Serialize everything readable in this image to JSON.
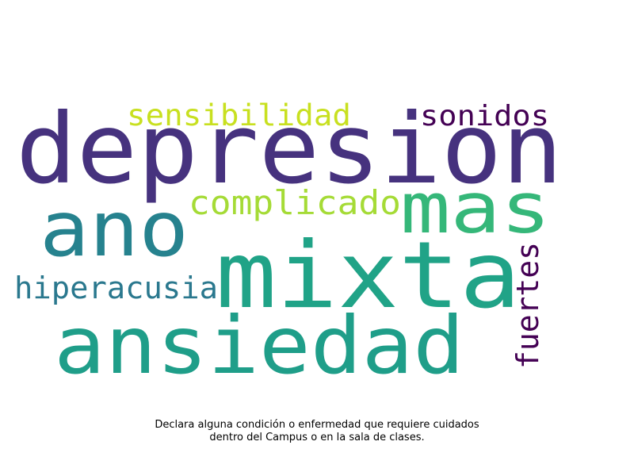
{
  "chart_data": {
    "type": "wordcloud",
    "words": [
      {
        "text": "depresion",
        "weight": 1.0,
        "color": "#46327e"
      },
      {
        "text": "mixta",
        "weight": 0.78,
        "color": "#20a387"
      },
      {
        "text": "ansiedad",
        "weight": 0.7,
        "color": "#1f9e89"
      },
      {
        "text": "ano",
        "weight": 0.62,
        "color": "#26828e"
      },
      {
        "text": "mas",
        "weight": 0.56,
        "color": "#35b779"
      },
      {
        "text": "complicado",
        "weight": 0.3,
        "color": "#a5db36"
      },
      {
        "text": "hiperacusia",
        "weight": 0.28,
        "color": "#2a788e"
      },
      {
        "text": "fuertes",
        "weight": 0.26,
        "color": "#440154"
      },
      {
        "text": "sensibilidad",
        "weight": 0.25,
        "color": "#c8e020"
      },
      {
        "text": "sonidos",
        "weight": 0.24,
        "color": "#440154"
      }
    ]
  },
  "caption": {
    "line1": "Declara alguna condición o enfermedad que requiere cuidados",
    "line2": "dentro del Campus o en la sala de clases."
  }
}
